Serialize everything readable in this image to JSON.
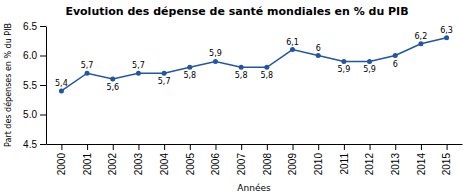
{
  "chart_data": {
    "type": "line",
    "title": "Evolution des dépense de santé mondiales en % du PIB",
    "xlabel": "Années",
    "ylabel": "Part des dépenses en % du PIB",
    "x": [
      2000,
      2001,
      2002,
      2003,
      2004,
      2005,
      2006,
      2007,
      2008,
      2009,
      2010,
      2011,
      2012,
      2013,
      2014,
      2015
    ],
    "values": [
      5.4,
      5.7,
      5.6,
      5.7,
      5.7,
      5.8,
      5.9,
      5.8,
      5.8,
      6.1,
      6.0,
      5.9,
      5.9,
      6.0,
      6.2,
      6.3
    ],
    "value_labels": [
      "5,4",
      "5,7",
      "5,6",
      "5,7",
      "5,7",
      "5,8",
      "5,9",
      "5,8",
      "5,8",
      "6,1",
      "6",
      "5,9",
      "5,9",
      "6",
      "6,2",
      "6,3"
    ],
    "data_labels": true,
    "color": "#2255A4",
    "marker": "circle",
    "line_style": "solid",
    "xlim": [
      1999.4,
      2015.6
    ],
    "xticks": [
      2000,
      2001,
      2002,
      2003,
      2004,
      2005,
      2006,
      2007,
      2008,
      2009,
      2010,
      2011,
      2012,
      2013,
      2014,
      2015
    ],
    "ylim": [
      4.5,
      6.5
    ],
    "yticks": [
      4.5,
      {
        "value": 5.0,
        "label": "5.0"
      },
      5.5,
      {
        "value": 6.0,
        "label": "6.0"
      },
      6.5
    ],
    "grid": false
  }
}
